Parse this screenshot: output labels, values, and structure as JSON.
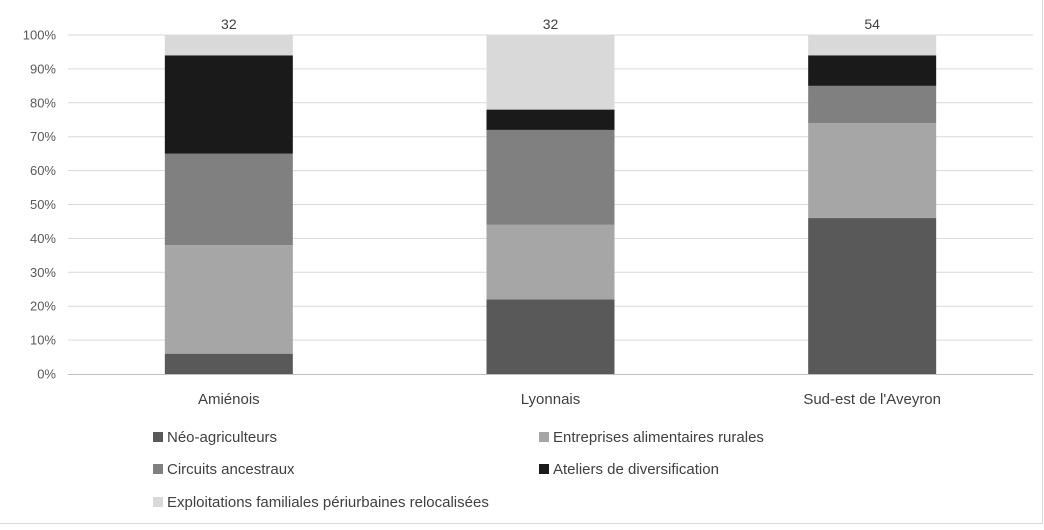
{
  "chart_data": {
    "type": "bar",
    "stacked": true,
    "normalized": true,
    "categories": [
      "Amiénois",
      "Lyonnais",
      "Sud-est de l'Aveyron"
    ],
    "totals": [
      "32",
      "32",
      "54"
    ],
    "series": [
      {
        "name": "Néo-agriculteurs",
        "color": "#595959",
        "values": [
          6,
          22,
          46
        ]
      },
      {
        "name": "Entreprises alimentaires rurales",
        "color": "#a6a6a6",
        "values": [
          32,
          22,
          28
        ]
      },
      {
        "name": "Circuits ancestraux",
        "color": "#808080",
        "values": [
          27,
          28,
          11
        ]
      },
      {
        "name": "Ateliers de diversification",
        "color": "#1a1a1a",
        "values": [
          29,
          6,
          9
        ]
      },
      {
        "name": "Exploitations familiales périurbaines relocalisées",
        "color": "#d9d9d9",
        "values": [
          6,
          22,
          6
        ]
      }
    ],
    "ylim": [
      0,
      100
    ],
    "yticks": [
      "0%",
      "10%",
      "20%",
      "30%",
      "40%",
      "50%",
      "60%",
      "70%",
      "80%",
      "90%",
      "100%"
    ],
    "grid": true,
    "legend": "bottom",
    "title": "",
    "xlabel": "",
    "ylabel": ""
  }
}
